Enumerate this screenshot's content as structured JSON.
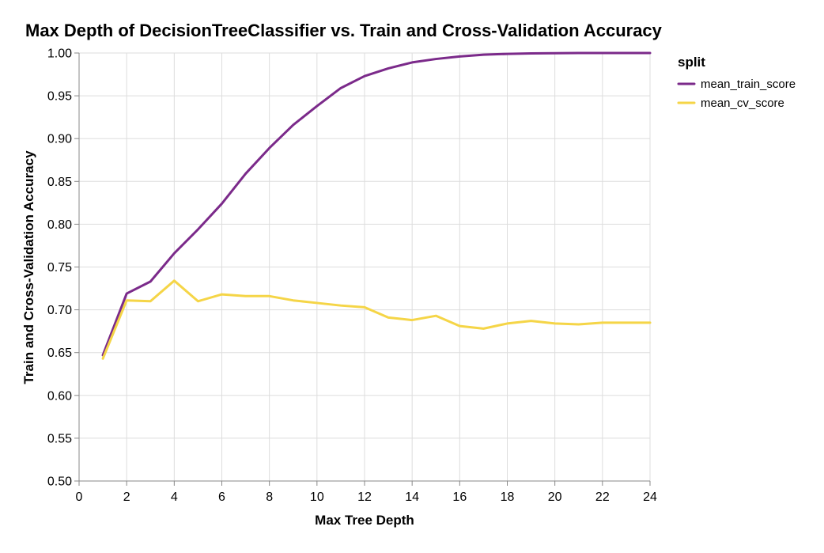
{
  "chart_data": {
    "type": "line",
    "title": "Max Depth of DecisionTreeClassifier vs. Train and Cross-Validation Accuracy",
    "xlabel": "Max Tree Depth",
    "ylabel": "Train and Cross-Validation Accuracy",
    "xlim": [
      0,
      24
    ],
    "ylim": [
      0.5,
      1.0
    ],
    "x_ticks": [
      "0",
      "2",
      "4",
      "6",
      "8",
      "10",
      "12",
      "14",
      "16",
      "18",
      "20",
      "22",
      "24"
    ],
    "y_ticks": [
      "0.50",
      "0.55",
      "0.60",
      "0.65",
      "0.70",
      "0.75",
      "0.80",
      "0.85",
      "0.90",
      "0.95",
      "1.00"
    ],
    "grid": true,
    "legend": {
      "title": "split",
      "position": "top-right"
    },
    "x": [
      1,
      2,
      3,
      4,
      5,
      6,
      7,
      8,
      9,
      10,
      11,
      12,
      13,
      14,
      15,
      16,
      17,
      18,
      19,
      20,
      21,
      22,
      23,
      24
    ],
    "series": [
      {
        "name": "mean_train_score",
        "color": "#7b2a8a",
        "values": [
          0.647,
          0.719,
          0.733,
          0.766,
          0.794,
          0.824,
          0.859,
          0.889,
          0.916,
          0.938,
          0.959,
          0.973,
          0.982,
          0.989,
          0.993,
          0.996,
          0.998,
          0.999,
          0.9995,
          0.9998,
          1.0,
          1.0,
          1.0,
          1.0
        ]
      },
      {
        "name": "mean_cv_score",
        "color": "#f5d547",
        "values": [
          0.643,
          0.711,
          0.71,
          0.734,
          0.71,
          0.718,
          0.716,
          0.716,
          0.711,
          0.708,
          0.705,
          0.703,
          0.691,
          0.688,
          0.693,
          0.681,
          0.678,
          0.684,
          0.687,
          0.684,
          0.683,
          0.685,
          0.685,
          0.685
        ]
      }
    ]
  }
}
